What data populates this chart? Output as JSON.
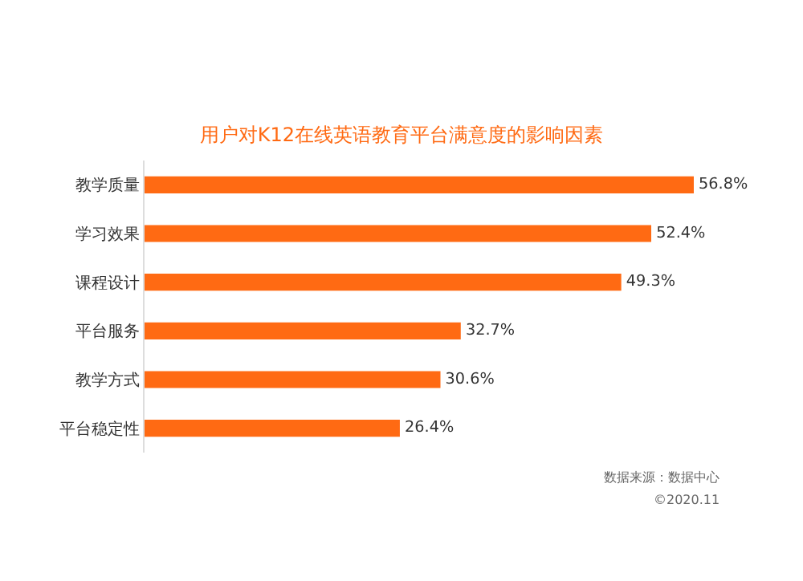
{
  "chart_data": {
    "type": "bar",
    "orientation": "horizontal",
    "title": "用户对K12在线英语教育平台满意度的影响因素",
    "categories": [
      "教学质量",
      "学习效果",
      "课程设计",
      "平台服务",
      "教学方式",
      "平台稳定性"
    ],
    "values": [
      56.8,
      52.4,
      49.3,
      32.7,
      30.6,
      26.4
    ],
    "value_labels": [
      "56.8%",
      "52.4%",
      "49.3%",
      "32.7%",
      "30.6%",
      "26.4%"
    ],
    "color": "#ff6a13",
    "annotations": [
      "数据来源：数据中心",
      "©2020.11"
    ],
    "legend": false
  }
}
